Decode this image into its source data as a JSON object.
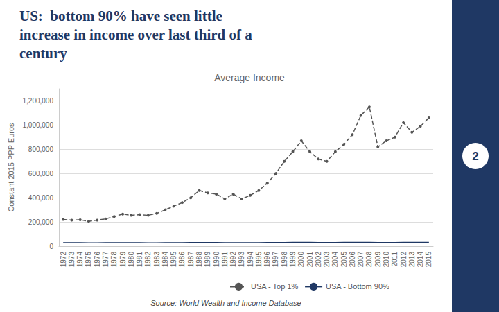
{
  "chart_data": {
    "type": "line",
    "headline": [
      "US:  bottom 90% have seen little",
      "increase in income over last third of a",
      "century"
    ],
    "title": "Average Income",
    "ylabel": "Constant 2015 PPP Euros",
    "annotations": [
      "Source: World Wealth and Income Database",
      "2"
    ],
    "categories": [
      "1972",
      "1973",
      "1974",
      "1975",
      "1976",
      "1977",
      "1978",
      "1979",
      "1980",
      "1981",
      "1982",
      "1983",
      "1984",
      "1985",
      "1986",
      "1987",
      "1988",
      "1989",
      "1990",
      "1991",
      "1992",
      "1993",
      "1994",
      "1995",
      "1996",
      "1997",
      "1998",
      "1999",
      "2000",
      "2001",
      "2002",
      "2003",
      "2004",
      "2005",
      "2006",
      "2007",
      "2008",
      "2009",
      "2010",
      "2011",
      "2012",
      "2013",
      "2014",
      "2015"
    ],
    "series": [
      {
        "name": "USA - Top 1%",
        "color": "#555555",
        "line_style": "dashed",
        "marker": "circle",
        "values": [
          220000,
          215000,
          218000,
          205000,
          215000,
          225000,
          245000,
          265000,
          255000,
          260000,
          255000,
          270000,
          300000,
          330000,
          360000,
          400000,
          460000,
          440000,
          430000,
          390000,
          430000,
          390000,
          420000,
          460000,
          520000,
          600000,
          700000,
          780000,
          870000,
          780000,
          720000,
          700000,
          780000,
          840000,
          920000,
          1080000,
          1150000,
          820000,
          870000,
          900000,
          1020000,
          940000,
          990000,
          1060000
        ]
      },
      {
        "name": "USA - Bottom 90%",
        "color": "#1f3864",
        "line_style": "solid",
        "marker": "none",
        "values": [
          28000,
          28500,
          28000,
          27000,
          27500,
          28000,
          28500,
          29000,
          28500,
          28000,
          27000,
          27000,
          28000,
          28500,
          29000,
          29500,
          30000,
          30000,
          29500,
          29000,
          29000,
          28500,
          29000,
          29000,
          29500,
          30000,
          30500,
          31000,
          31500,
          31000,
          30500,
          30000,
          30500,
          31000,
          31500,
          32000,
          31500,
          30000,
          30000,
          30500,
          31000,
          31000,
          31500,
          32000
        ]
      }
    ],
    "ylim": [
      0,
      1300000
    ],
    "yticks": [
      0,
      {
        "value": 200000,
        "label": "200,000"
      },
      {
        "value": 400000,
        "label": "400,000"
      },
      {
        "value": 600000,
        "label": "600,000"
      },
      {
        "value": 800000,
        "label": "800,000"
      },
      {
        "value": 1000000,
        "label": "1,000,000"
      },
      {
        "value": 1200000,
        "label": "1,200,000"
      }
    ],
    "grid": true,
    "legend": "bottom"
  }
}
